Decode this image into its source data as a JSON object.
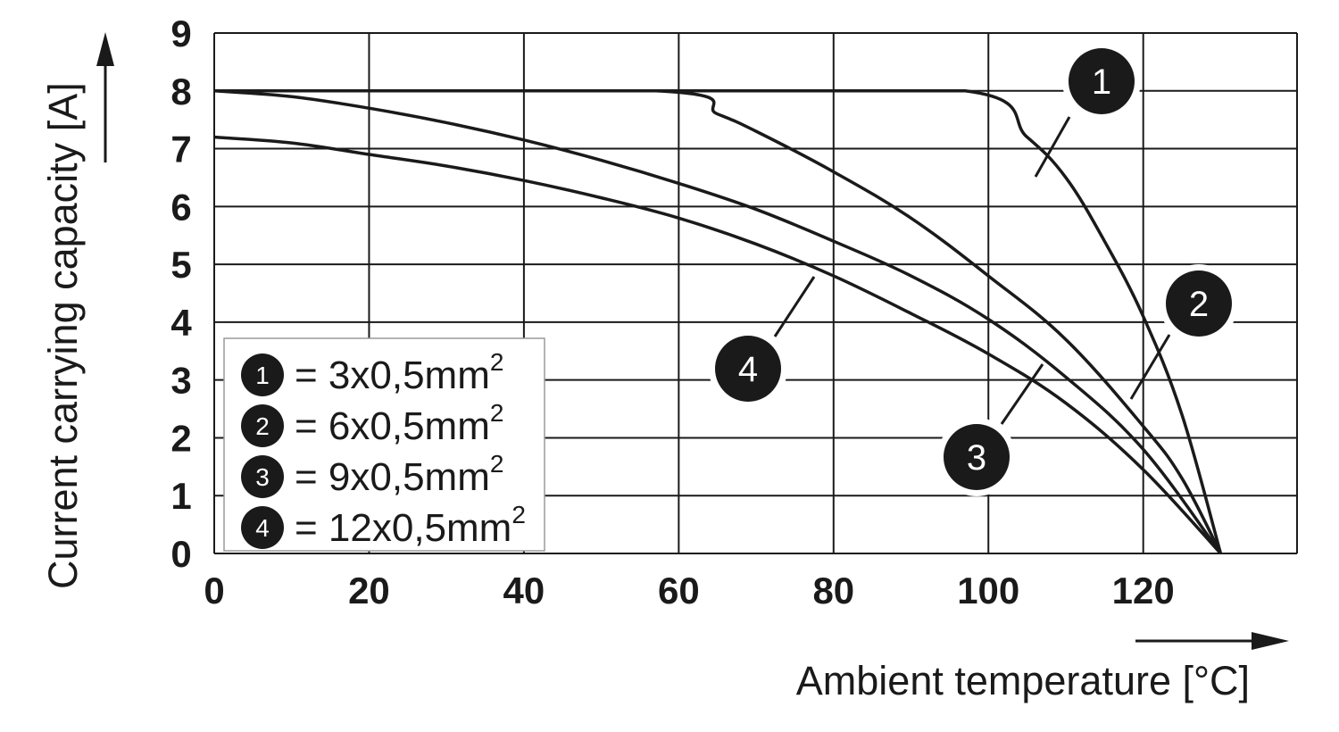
{
  "chart_data": {
    "type": "line",
    "xlabel": "Ambient temperature [°C]",
    "ylabel": "Current carrying capacity [A]",
    "xlim": [
      0,
      140
    ],
    "ylim": [
      0,
      9
    ],
    "xticks": [
      0,
      20,
      40,
      60,
      80,
      100,
      120
    ],
    "yticks": [
      0,
      1,
      2,
      3,
      4,
      5,
      6,
      7,
      8,
      9
    ],
    "grid": true,
    "legend_position": "bottom-left",
    "colors": {
      "line": "#1a1a1a",
      "grid": "#1a1a1a",
      "badge": "#1a1a1a",
      "badge_text": "#ffffff"
    },
    "series": [
      {
        "id": "1",
        "name": "3x0,5mm",
        "name_sup": "2",
        "x": [
          0,
          57,
          97,
          105,
          110,
          115,
          120,
          125,
          130
        ],
        "y": [
          8,
          8,
          8,
          7.2,
          6.5,
          5.4,
          4.1,
          2.4,
          0
        ]
      },
      {
        "id": "2",
        "name": "6x0,5mm",
        "name_sup": "2",
        "x": [
          0,
          57,
          65,
          70,
          80,
          90,
          100,
          110,
          120,
          125,
          130
        ],
        "y": [
          8,
          8,
          7.6,
          7.3,
          6.6,
          5.8,
          4.8,
          3.7,
          2.2,
          1.3,
          0
        ]
      },
      {
        "id": "3",
        "name": "9x0,5mm",
        "name_sup": "2",
        "x": [
          0,
          10,
          20,
          30,
          40,
          50,
          60,
          70,
          80,
          90,
          100,
          110,
          120,
          130
        ],
        "y": [
          8,
          7.9,
          7.7,
          7.45,
          7.15,
          6.8,
          6.4,
          5.95,
          5.4,
          4.8,
          4.05,
          3.05,
          1.8,
          0
        ]
      },
      {
        "id": "4",
        "name": "12x0,5mm",
        "name_sup": "2",
        "x": [
          0,
          10,
          20,
          30,
          40,
          50,
          60,
          70,
          80,
          90,
          100,
          110,
          120,
          130
        ],
        "y": [
          7.2,
          7.1,
          6.9,
          6.7,
          6.45,
          6.15,
          5.8,
          5.35,
          4.8,
          4.15,
          3.45,
          2.6,
          1.45,
          0
        ]
      }
    ]
  }
}
